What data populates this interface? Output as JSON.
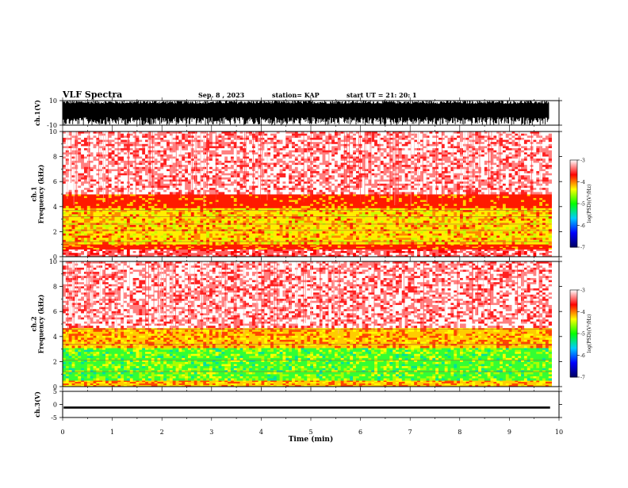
{
  "header": {
    "title": "VLF Spectra",
    "date": "Sep. 8 , 2023",
    "station": "station= KAP",
    "start": "start  UT =   21: 20: 1"
  },
  "colorbar": {
    "label": "log(PSD)(V²/Hz)",
    "ticks": [
      "-3",
      "-4",
      "-5",
      "-6",
      "-7"
    ],
    "stops": [
      "#ffffff",
      "#ff0000",
      "#ffff00",
      "#00ff00",
      "#00ccff",
      "#0000ff",
      "#000060"
    ]
  },
  "chart_data": [
    {
      "type": "line",
      "id": "ch1-waveform",
      "ylabel": "ch.1(V)",
      "ylim": [
        -10,
        10
      ],
      "yticks": [
        "10",
        "-10"
      ],
      "xlim": [
        0,
        10
      ],
      "description_values": "dense saturated waveform spanning approx -10 to 10 V",
      "color": "#000000"
    },
    {
      "type": "heatmap",
      "id": "ch1-spectrogram",
      "ylabel": "ch.1\nFrequency (kHz)",
      "ylim": [
        0,
        10
      ],
      "yticks": [
        "0",
        "2",
        "4",
        "6",
        "8",
        "10"
      ],
      "xlim": [
        0,
        9.85
      ],
      "bands": [
        {
          "from": 0,
          "to": 0.6,
          "level": "red-white"
        },
        {
          "from": 0.6,
          "to": 1.0,
          "level": "red"
        },
        {
          "from": 1.0,
          "to": 3.9,
          "level": "yellow"
        },
        {
          "from": 3.9,
          "to": 5.0,
          "level": "red"
        },
        {
          "from": 5.0,
          "to": 10,
          "level": "light-red"
        }
      ],
      "lines_khz": [
        1.2,
        2.1,
        2.6,
        3.2,
        3.7
      ]
    },
    {
      "type": "heatmap",
      "id": "ch2-spectrogram",
      "ylabel": "ch.2\nFrequency (kHz)",
      "ylim": [
        0,
        10
      ],
      "yticks": [
        "0",
        "2",
        "4",
        "6",
        "8",
        "10"
      ],
      "xlim": [
        0,
        9.85
      ],
      "bands": [
        {
          "from": 0,
          "to": 0.5,
          "level": "yellow-red"
        },
        {
          "from": 0.5,
          "to": 3.1,
          "level": "green"
        },
        {
          "from": 3.1,
          "to": 4.7,
          "level": "yellow-red"
        },
        {
          "from": 4.7,
          "to": 10,
          "level": "light-red"
        }
      ],
      "lines_khz": [
        1.2,
        2.1,
        3.4,
        4.6
      ]
    },
    {
      "type": "line",
      "id": "ch3-waveform",
      "ylabel": "ch.3(V)",
      "ylim": [
        -5,
        5
      ],
      "yticks": [
        "5",
        "0",
        "-5"
      ],
      "xlim": [
        0,
        10
      ],
      "band": [
        -1.6,
        -0.8
      ],
      "color": "#000000"
    }
  ],
  "xaxis": {
    "label": "Time (min)",
    "ticks": [
      "0",
      "1",
      "2",
      "3",
      "4",
      "5",
      "6",
      "7",
      "8",
      "9",
      "10"
    ],
    "xlim": [
      0,
      10
    ]
  }
}
